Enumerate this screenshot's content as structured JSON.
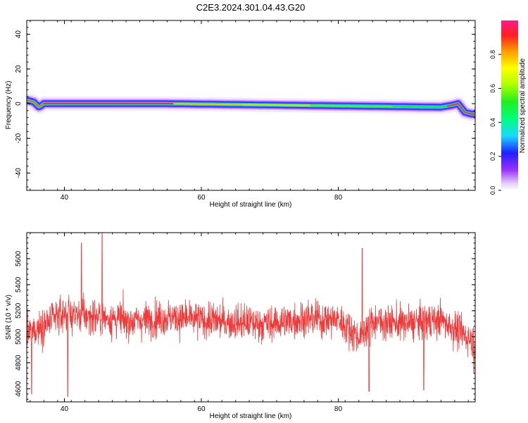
{
  "title": "C2E3.2024.301.04.43.G20",
  "colors": {
    "snr_line": "#f03a3a",
    "panel_border": "#000000",
    "background": "#ffffff"
  },
  "chart_data": [
    {
      "type": "heatmap",
      "title": "C2E3.2024.301.04.43.G20",
      "xlabel": "Height of straight line (km)",
      "ylabel": "Frequency (Hz)",
      "xlim": [
        34.5,
        100
      ],
      "ylim": [
        -50,
        48
      ],
      "xticks": [
        "40",
        "60",
        "80"
      ],
      "yticks": [
        "-40",
        "-20",
        "0",
        "20",
        "40"
      ],
      "grid": false,
      "ridge": {
        "x": [
          34.5,
          35.5,
          36.3,
          37,
          45,
          55,
          65,
          75,
          85,
          95,
          96.5,
          97.5,
          98.5,
          99.5
        ],
        "y": [
          2,
          1,
          -2,
          0,
          0,
          0,
          -0.5,
          -1,
          -1.5,
          -2,
          -1,
          0,
          -5,
          -6
        ]
      },
      "colorbar": {
        "label": "Normalized spectral amplitude",
        "ticks": [
          "0.0",
          "0.2",
          "0.4",
          "0.6",
          "0.8"
        ],
        "range": [
          0,
          1
        ]
      }
    },
    {
      "type": "line",
      "xlabel": "Height of straight line (km)",
      "ylabel": "SNR (10 * v/v)",
      "xlim": [
        34.5,
        100
      ],
      "ylim": [
        4500,
        5800
      ],
      "xticks": [
        "40",
        "60",
        "80"
      ],
      "yticks": [
        "4600",
        "4800",
        "5000",
        "5200",
        "5400",
        "5600"
      ],
      "grid": false,
      "series": [
        {
          "mean_trend": {
            "x": [
              34.5,
              40,
              45,
              50,
              55,
              60,
              65,
              70,
              75,
              80,
              83,
              85,
              90,
              95,
              100
            ],
            "y": [
              5020,
              5180,
              5150,
              5120,
              5150,
              5130,
              5110,
              5100,
              5140,
              5130,
              5000,
              5120,
              5100,
              5130,
              4960
            ]
          },
          "peaks": [
            {
              "x": 42.5,
              "y": 5720
            },
            {
              "x": 45.5,
              "y": 5810
            },
            {
              "x": 83.5,
              "y": 5680
            }
          ],
          "troughs": [
            {
              "x": 35.2,
              "y": 4560
            },
            {
              "x": 40.5,
              "y": 4540
            },
            {
              "x": 84.5,
              "y": 4580
            },
            {
              "x": 92.5,
              "y": 4590
            },
            {
              "x": 99.8,
              "y": 4720
            }
          ]
        }
      ]
    }
  ]
}
